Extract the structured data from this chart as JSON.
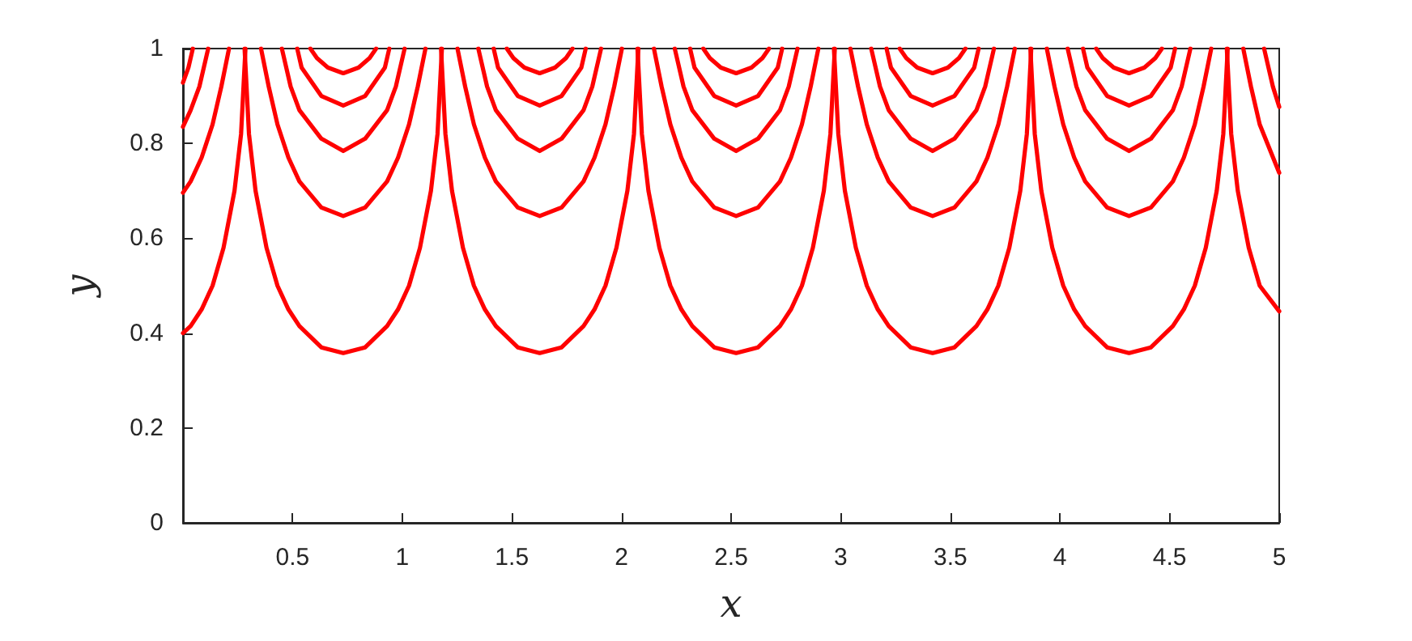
{
  "chart_data": {
    "type": "line",
    "xlabel": "x",
    "ylabel": "y",
    "xlim": [
      0,
      5
    ],
    "ylim": [
      0,
      1
    ],
    "xticks": [
      0.5,
      1,
      1.5,
      2,
      2.5,
      3,
      3.5,
      4,
      4.5,
      5
    ],
    "yticks": [
      0,
      0.2,
      0.4,
      0.6,
      0.8,
      1
    ],
    "grid": false,
    "marker": "none",
    "line_style": "solid",
    "series": [
      {
        "color": "#ff0000",
        "x": [
          0,
          0.035,
          0.085,
          0.135,
          0.185,
          0.235,
          0.265,
          0.285
        ],
        "values": [
          0.4,
          0.415,
          0.45,
          0.5,
          0.58,
          0.7,
          0.82,
          1
        ]
      },
      {
        "color": "#ff0000",
        "x": [
          0.281,
          0.301,
          0.331,
          0.381,
          0.431,
          0.481,
          0.531,
          0.631,
          0.731,
          0.831,
          0.931,
          0.981,
          1.031,
          1.081,
          1.131,
          1.161,
          1.181
        ],
        "values": [
          1,
          0.82,
          0.7,
          0.58,
          0.5,
          0.45,
          0.415,
          0.37,
          0.358,
          0.37,
          0.415,
          0.45,
          0.5,
          0.58,
          0.7,
          0.82,
          1
        ]
      },
      {
        "color": "#ff0000",
        "x": [
          1.177,
          1.197,
          1.227,
          1.277,
          1.327,
          1.377,
          1.427,
          1.527,
          1.627,
          1.727,
          1.827,
          1.877,
          1.927,
          1.977,
          2.027,
          2.057,
          2.077
        ],
        "values": [
          1,
          0.82,
          0.7,
          0.58,
          0.5,
          0.45,
          0.415,
          0.37,
          0.358,
          0.37,
          0.415,
          0.45,
          0.5,
          0.58,
          0.7,
          0.82,
          1
        ]
      },
      {
        "color": "#ff0000",
        "x": [
          2.073,
          2.093,
          2.123,
          2.173,
          2.223,
          2.273,
          2.323,
          2.423,
          2.523,
          2.623,
          2.723,
          2.773,
          2.823,
          2.873,
          2.923,
          2.953,
          2.973
        ],
        "values": [
          1,
          0.82,
          0.7,
          0.58,
          0.5,
          0.45,
          0.415,
          0.37,
          0.358,
          0.37,
          0.415,
          0.45,
          0.5,
          0.58,
          0.7,
          0.82,
          1
        ]
      },
      {
        "color": "#ff0000",
        "x": [
          2.969,
          2.989,
          3.019,
          3.069,
          3.119,
          3.169,
          3.219,
          3.319,
          3.419,
          3.519,
          3.619,
          3.669,
          3.719,
          3.769,
          3.819,
          3.849,
          3.869
        ],
        "values": [
          1,
          0.82,
          0.7,
          0.58,
          0.5,
          0.45,
          0.415,
          0.37,
          0.358,
          0.37,
          0.415,
          0.45,
          0.5,
          0.58,
          0.7,
          0.82,
          1
        ]
      },
      {
        "color": "#ff0000",
        "x": [
          3.865,
          3.885,
          3.915,
          3.965,
          4.015,
          4.065,
          4.115,
          4.215,
          4.315,
          4.415,
          4.515,
          4.565,
          4.615,
          4.665,
          4.715,
          4.745,
          4.765
        ],
        "values": [
          1,
          0.82,
          0.7,
          0.58,
          0.5,
          0.45,
          0.415,
          0.37,
          0.358,
          0.37,
          0.415,
          0.45,
          0.5,
          0.58,
          0.7,
          0.82,
          1
        ]
      },
      {
        "color": "#ff0000",
        "x": [
          4.761,
          4.781,
          4.811,
          4.861,
          4.911,
          5
        ],
        "values": [
          1,
          0.82,
          0.7,
          0.58,
          0.5,
          0.446
        ]
      },
      {
        "color": "#ff0000",
        "x": [
          0,
          0.035,
          0.085,
          0.135,
          0.175,
          0.21
        ],
        "values": [
          0.696,
          0.72,
          0.77,
          0.84,
          0.92,
          1
        ]
      },
      {
        "color": "#ff0000",
        "x": [
          0.356,
          0.391,
          0.431,
          0.481,
          0.531,
          0.631,
          0.731,
          0.831,
          0.931,
          0.981,
          1.031,
          1.071,
          1.106
        ],
        "values": [
          1,
          0.92,
          0.84,
          0.77,
          0.72,
          0.665,
          0.647,
          0.665,
          0.72,
          0.77,
          0.84,
          0.92,
          1
        ]
      },
      {
        "color": "#ff0000",
        "x": [
          1.252,
          1.287,
          1.327,
          1.377,
          1.427,
          1.527,
          1.627,
          1.727,
          1.827,
          1.877,
          1.927,
          1.967,
          2.002
        ],
        "values": [
          1,
          0.92,
          0.84,
          0.77,
          0.72,
          0.665,
          0.647,
          0.665,
          0.72,
          0.77,
          0.84,
          0.92,
          1
        ]
      },
      {
        "color": "#ff0000",
        "x": [
          2.148,
          2.183,
          2.223,
          2.273,
          2.323,
          2.423,
          2.523,
          2.623,
          2.723,
          2.773,
          2.823,
          2.863,
          2.898
        ],
        "values": [
          1,
          0.92,
          0.84,
          0.77,
          0.72,
          0.665,
          0.647,
          0.665,
          0.72,
          0.77,
          0.84,
          0.92,
          1
        ]
      },
      {
        "color": "#ff0000",
        "x": [
          3.044,
          3.079,
          3.119,
          3.169,
          3.219,
          3.319,
          3.419,
          3.519,
          3.619,
          3.669,
          3.719,
          3.759,
          3.794
        ],
        "values": [
          1,
          0.92,
          0.84,
          0.77,
          0.72,
          0.665,
          0.647,
          0.665,
          0.72,
          0.77,
          0.84,
          0.92,
          1
        ]
      },
      {
        "color": "#ff0000",
        "x": [
          3.94,
          3.975,
          4.015,
          4.065,
          4.115,
          4.215,
          4.315,
          4.415,
          4.515,
          4.565,
          4.615,
          4.655,
          4.69
        ],
        "values": [
          1,
          0.92,
          0.84,
          0.77,
          0.72,
          0.665,
          0.647,
          0.665,
          0.72,
          0.77,
          0.84,
          0.92,
          1
        ]
      },
      {
        "color": "#ff0000",
        "x": [
          4.836,
          4.871,
          4.911,
          5
        ],
        "values": [
          1,
          0.92,
          0.84,
          0.738
        ]
      },
      {
        "color": "#ff0000",
        "x": [
          0,
          0.035,
          0.075,
          0.115
        ],
        "values": [
          0.835,
          0.87,
          0.92,
          1
        ]
      },
      {
        "color": "#ff0000",
        "x": [
          0.451,
          0.491,
          0.531,
          0.631,
          0.731,
          0.831,
          0.931,
          0.971,
          1.011
        ],
        "values": [
          1,
          0.92,
          0.87,
          0.81,
          0.784,
          0.81,
          0.87,
          0.92,
          1
        ]
      },
      {
        "color": "#ff0000",
        "x": [
          1.347,
          1.387,
          1.427,
          1.527,
          1.627,
          1.727,
          1.827,
          1.867,
          1.907
        ],
        "values": [
          1,
          0.92,
          0.87,
          0.81,
          0.784,
          0.81,
          0.87,
          0.92,
          1
        ]
      },
      {
        "color": "#ff0000",
        "x": [
          2.243,
          2.283,
          2.323,
          2.423,
          2.523,
          2.623,
          2.723,
          2.763,
          2.803
        ],
        "values": [
          1,
          0.92,
          0.87,
          0.81,
          0.784,
          0.81,
          0.87,
          0.92,
          1
        ]
      },
      {
        "color": "#ff0000",
        "x": [
          3.139,
          3.179,
          3.219,
          3.319,
          3.419,
          3.519,
          3.619,
          3.659,
          3.699
        ],
        "values": [
          1,
          0.92,
          0.87,
          0.81,
          0.784,
          0.81,
          0.87,
          0.92,
          1
        ]
      },
      {
        "color": "#ff0000",
        "x": [
          4.035,
          4.075,
          4.115,
          4.215,
          4.315,
          4.415,
          4.515,
          4.555,
          4.595
        ],
        "values": [
          1,
          0.92,
          0.87,
          0.81,
          0.784,
          0.81,
          0.87,
          0.92,
          1
        ]
      },
      {
        "color": "#ff0000",
        "x": [
          4.931,
          4.971,
          5
        ],
        "values": [
          1,
          0.92,
          0.877
        ]
      },
      {
        "color": "#ff0000",
        "x": [
          0,
          0.025,
          0.045
        ],
        "values": [
          0.928,
          0.96,
          1
        ]
      },
      {
        "color": "#ff0000",
        "x": [
          0.521,
          0.541,
          0.631,
          0.731,
          0.831,
          0.921,
          0.941
        ],
        "values": [
          1,
          0.96,
          0.9,
          0.88,
          0.9,
          0.96,
          1
        ]
      },
      {
        "color": "#ff0000",
        "x": [
          1.417,
          1.437,
          1.527,
          1.627,
          1.727,
          1.817,
          1.837
        ],
        "values": [
          1,
          0.96,
          0.9,
          0.88,
          0.9,
          0.96,
          1
        ]
      },
      {
        "color": "#ff0000",
        "x": [
          2.313,
          2.333,
          2.423,
          2.523,
          2.623,
          2.713,
          2.733
        ],
        "values": [
          1,
          0.96,
          0.9,
          0.88,
          0.9,
          0.96,
          1
        ]
      },
      {
        "color": "#ff0000",
        "x": [
          3.209,
          3.229,
          3.319,
          3.419,
          3.519,
          3.609,
          3.629
        ],
        "values": [
          1,
          0.96,
          0.9,
          0.88,
          0.9,
          0.96,
          1
        ]
      },
      {
        "color": "#ff0000",
        "x": [
          4.105,
          4.125,
          4.215,
          4.315,
          4.415,
          4.505,
          4.525
        ],
        "values": [
          1,
          0.96,
          0.9,
          0.88,
          0.9,
          0.96,
          1
        ]
      },
      {
        "color": "#ff0000",
        "x": [
          0.581,
          0.611,
          0.661,
          0.731,
          0.801,
          0.851,
          0.881
        ],
        "values": [
          1,
          0.98,
          0.96,
          0.948,
          0.96,
          0.98,
          1
        ]
      },
      {
        "color": "#ff0000",
        "x": [
          1.477,
          1.507,
          1.557,
          1.627,
          1.697,
          1.747,
          1.777
        ],
        "values": [
          1,
          0.98,
          0.96,
          0.948,
          0.96,
          0.98,
          1
        ]
      },
      {
        "color": "#ff0000",
        "x": [
          2.373,
          2.403,
          2.453,
          2.523,
          2.593,
          2.643,
          2.673
        ],
        "values": [
          1,
          0.98,
          0.96,
          0.948,
          0.96,
          0.98,
          1
        ]
      },
      {
        "color": "#ff0000",
        "x": [
          3.269,
          3.299,
          3.349,
          3.419,
          3.489,
          3.539,
          3.569
        ],
        "values": [
          1,
          0.98,
          0.96,
          0.948,
          0.96,
          0.98,
          1
        ]
      },
      {
        "color": "#ff0000",
        "x": [
          4.165,
          4.195,
          4.245,
          4.315,
          4.385,
          4.435,
          4.465
        ],
        "values": [
          1,
          0.98,
          0.96,
          0.948,
          0.96,
          0.98,
          1
        ]
      }
    ]
  }
}
